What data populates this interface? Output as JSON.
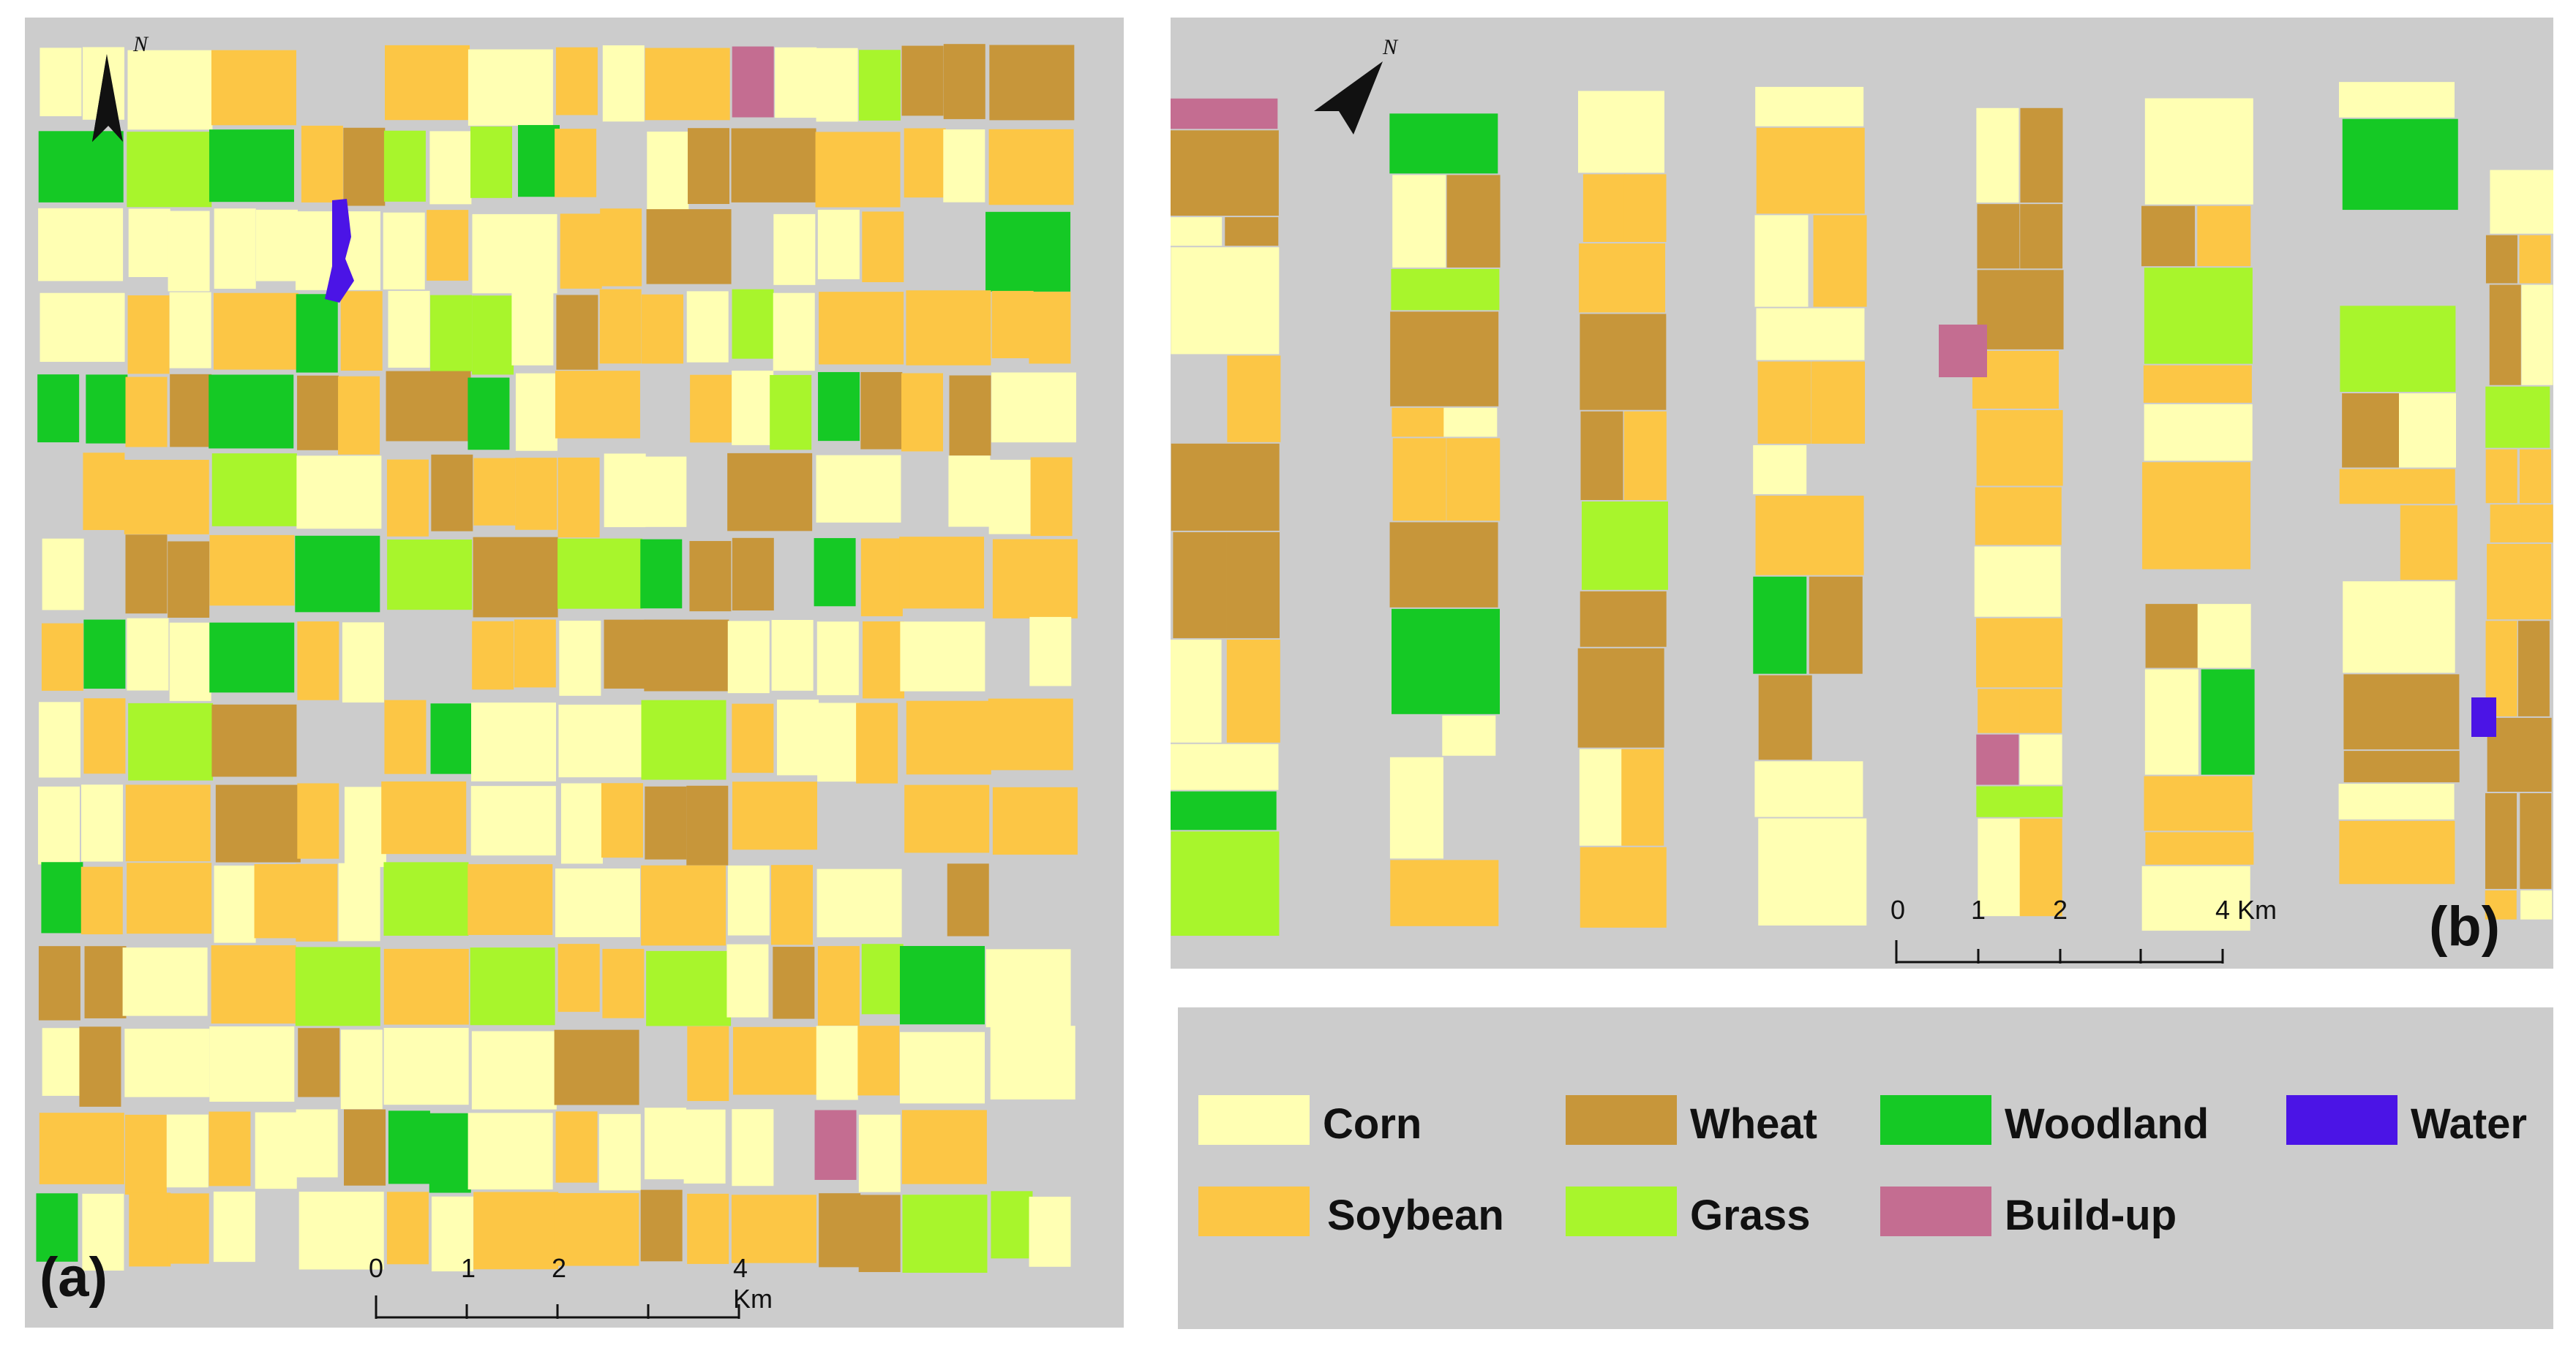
{
  "colors": {
    "background_grey": "#cccccc",
    "corn": "#ffffb3",
    "soybean": "#fcc645",
    "wheat": "#c7963a",
    "woodland": "#15c925",
    "grass": "#a8f52c",
    "buildup": "#c46d91",
    "water": "#4b14e6"
  },
  "panels": {
    "a": {
      "label": "(a)"
    },
    "b": {
      "label": "(b)"
    }
  },
  "north_arrow": {
    "letter": "N",
    "icon": "north-arrow-icon"
  },
  "scale": {
    "ticks": [
      "0",
      "1",
      "2",
      "4 Km"
    ]
  },
  "legend": {
    "items": [
      {
        "label": "Corn",
        "color": "#ffffb3"
      },
      {
        "label": "Wheat",
        "color": "#c7963a"
      },
      {
        "label": "Woodland",
        "color": "#15c925"
      },
      {
        "label": "Water",
        "color": "#4b14e6"
      },
      {
        "label": "Soybean",
        "color": "#fcc645"
      },
      {
        "label": "Grass",
        "color": "#a8f52c"
      },
      {
        "label": "Build-up",
        "color": "#c46d91"
      }
    ]
  }
}
